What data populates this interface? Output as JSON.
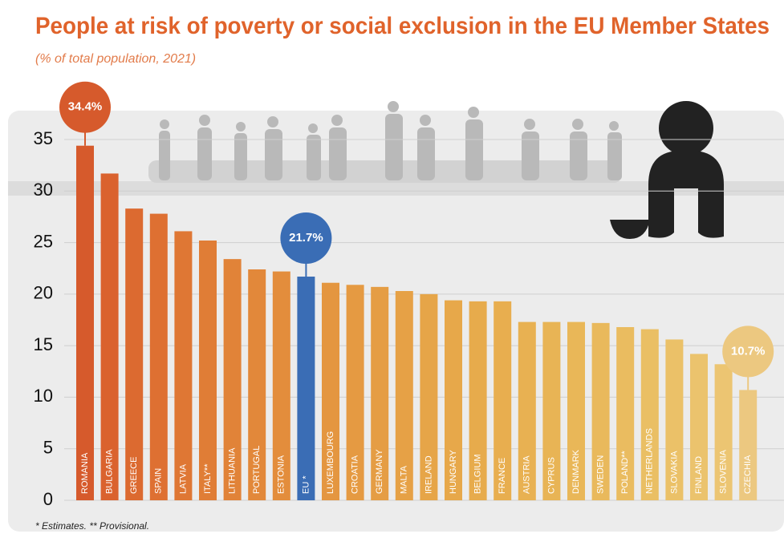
{
  "chart_data": {
    "type": "bar",
    "title": "People at risk of poverty or social exclusion in the EU Member States",
    "subtitle": "(% of total population, 2021)",
    "footnote": "* Estimates. ** Provisional.",
    "categories": [
      "ROMANIA",
      "BULGARIA",
      "GREECE",
      "SPAIN",
      "LATVIA",
      "ITALY**",
      "LITHUANIA",
      "PORTUGAL",
      "ESTONIA",
      "EU *",
      "LUXEMBOURG",
      "CROATIA",
      "GERMANY",
      "MALTA",
      "IRELAND",
      "HUNGARY",
      "BELGIUM",
      "FRANCE",
      "AUSTRIA",
      "CYPRUS",
      "DENMARK",
      "SWEDEN",
      "POLAND**",
      "NETHERLANDS",
      "SLOVAKIA",
      "FINLAND",
      "SLOVENIA",
      "CZECHIA"
    ],
    "values": [
      34.4,
      31.7,
      28.3,
      27.8,
      26.1,
      25.2,
      23.4,
      22.4,
      22.2,
      21.7,
      21.1,
      20.9,
      20.7,
      20.3,
      20.0,
      19.4,
      19.3,
      19.3,
      17.3,
      17.3,
      17.3,
      17.2,
      16.8,
      16.6,
      15.6,
      14.2,
      13.2,
      10.7
    ],
    "value_labels": [
      "34.4%",
      null,
      null,
      null,
      null,
      null,
      null,
      null,
      null,
      "21.7%",
      null,
      null,
      null,
      null,
      null,
      null,
      null,
      null,
      null,
      null,
      null,
      null,
      null,
      null,
      null,
      null,
      null,
      "10.7%"
    ],
    "colors": [
      "#d65a2c",
      "#da622e",
      "#dc6a30",
      "#de7032",
      "#df7734",
      "#e07d36",
      "#e18338",
      "#e2883a",
      "#e38d3c",
      "#3a6db5",
      "#e49640",
      "#e59a42",
      "#e59d44",
      "#e6a146",
      "#e6a548",
      "#e7a84a",
      "#e7ab4c",
      "#e8ae4f",
      "#e8b152",
      "#e8b455",
      "#e9b758",
      "#e9b95c",
      "#eabc60",
      "#eabf64",
      "#ebc168",
      "#ebc36d",
      "#ecc572",
      "#ecc880"
    ],
    "ylim": [
      0,
      35
    ],
    "yticks": [
      0,
      5,
      10,
      15,
      20,
      25,
      30,
      35
    ],
    "grid": true
  }
}
